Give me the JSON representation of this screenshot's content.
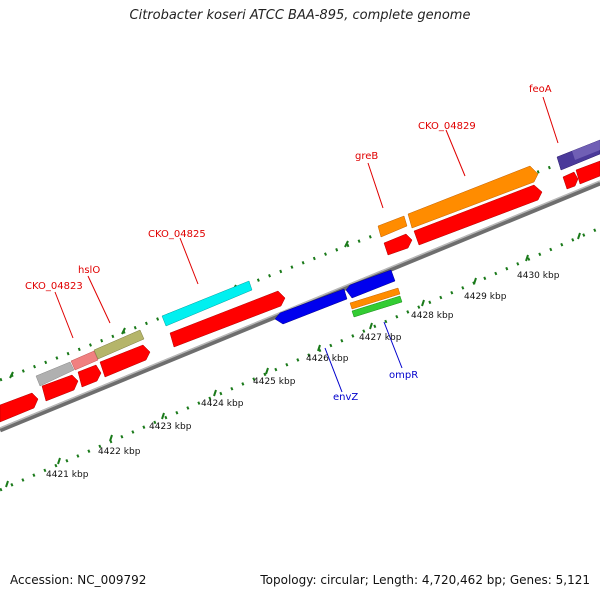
{
  "title": "Citrobacter koseri ATCC BAA-895, complete genome",
  "footer": {
    "accession": "Accession: NC_009792",
    "summary": "Topology: circular; Length: 4,720,462 bp; Genes: 5,121"
  },
  "genes": {
    "feoA": "feoA",
    "cko_04829": "CKO_04829",
    "greB": "greB",
    "cko_04825": "CKO_04825",
    "hslO": "hslO",
    "cko_04823": "CKO_04823",
    "envZ": "envZ",
    "ompR": "ompR"
  },
  "scale_labels": {
    "k4421": "4421 kbp",
    "k4422": "4422 kbp",
    "k4423": "4423 kbp",
    "k4424": "4424 kbp",
    "k4425": "4425 kbp",
    "k4426": "4426 kbp",
    "k4427": "4427 kbp",
    "k4428": "4428 kbp",
    "k4429": "4429 kbp",
    "k4430": "4430 kbp"
  },
  "colors": {
    "cds_red": "#ff0000",
    "forward_orange": "#ff8c00",
    "reverse_blue": "#0000ee",
    "cyan": "#00ffff",
    "olive": "#b5b56a",
    "grey": "#b0b0b0",
    "pink": "#f08080",
    "purple": "#4b3a9a",
    "green": "#33cc33",
    "backbone": "#8c8c8c",
    "tick_green": "#1a7a1a",
    "label_red": "#e00000",
    "label_blue": "#0000cc"
  }
}
